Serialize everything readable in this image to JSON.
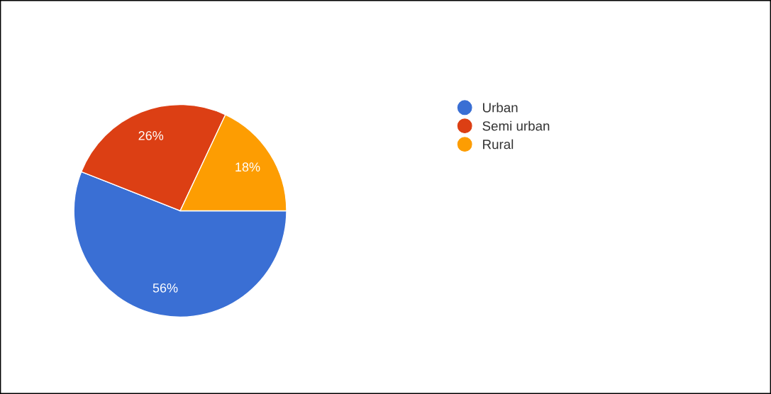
{
  "chart_data": {
    "type": "pie",
    "categories": [
      "Urban",
      "Semi urban",
      "Rural"
    ],
    "values": [
      56,
      26,
      18
    ],
    "colors": [
      "#3a6fd4",
      "#dc3f14",
      "#fd9d02"
    ],
    "value_labels": [
      "56%",
      "26%",
      "18%"
    ],
    "legend": "right"
  }
}
